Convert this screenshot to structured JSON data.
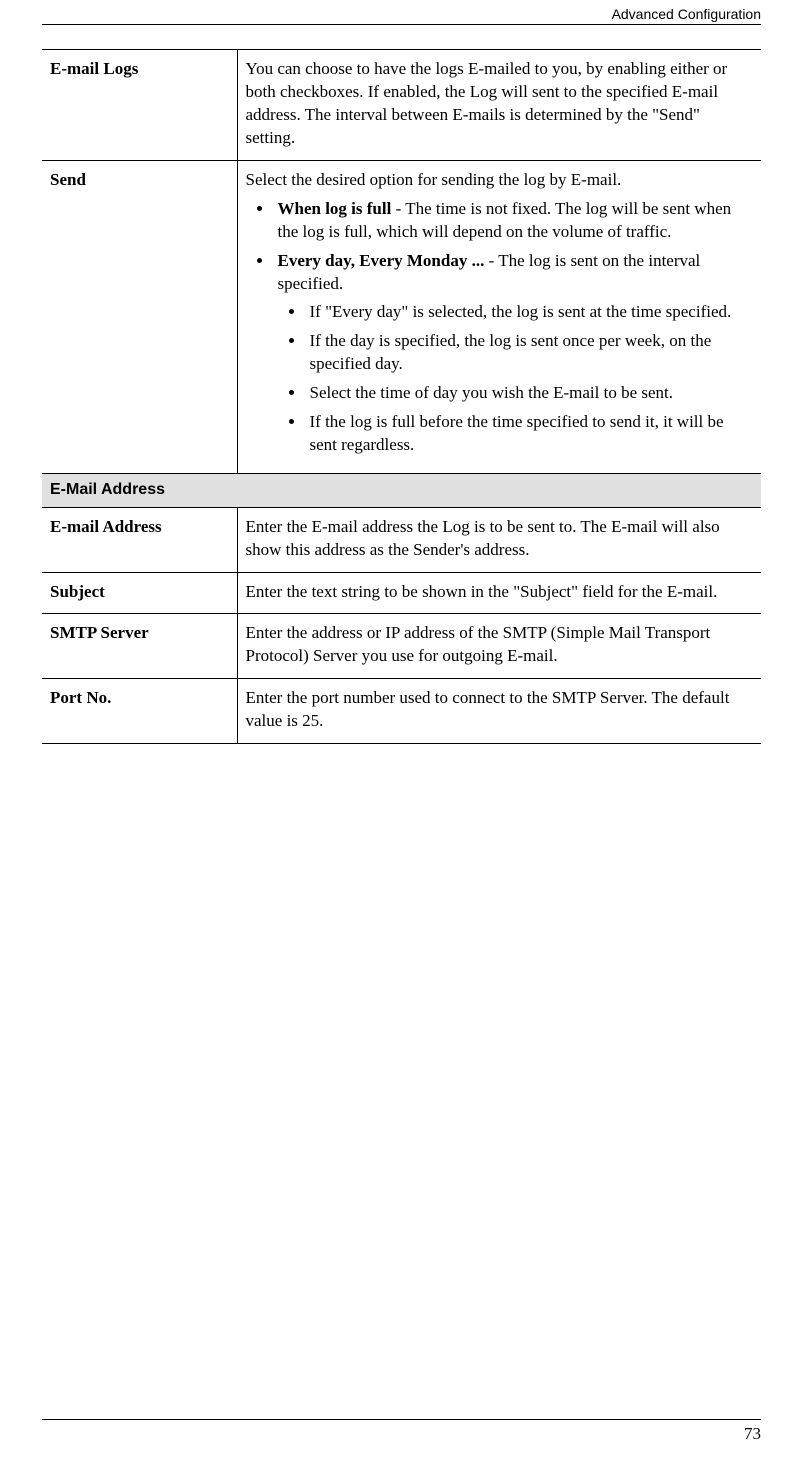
{
  "header": {
    "title": "Advanced Configuration"
  },
  "footer": {
    "page_number": "73"
  },
  "rows": {
    "email_logs": {
      "label": "E-mail Logs",
      "desc": "You can choose to have the logs E-mailed to you, by enabling either or both checkboxes. If enabled, the Log will sent to the specified E-mail address. The interval between E-mails is deter­mined by the \"Send\" setting."
    },
    "send": {
      "label": "Send",
      "intro": "Select the desired option for sending the log by E-mail.",
      "b1_bold": "When log is full",
      "b1_rest": " - The time is not fixed. The log will be sent when the log is full, which will depend on the volume of traf­fic.",
      "b2_bold": "Every day, Every Monday ...",
      "b2_rest": "  - The log is sent on the interval specified.",
      "sub1": "If \"Every day\" is selected, the log is sent at the time specified.",
      "sub2": "If the day is specified, the log is sent once per week, on the specified day.",
      "sub3": "Select the time of day you wish the E-mail to be sent.",
      "sub4": "If the log is full before the time specified to send it, it will be sent regardless."
    },
    "section_email_address": {
      "title": "E-Mail Address"
    },
    "email_address": {
      "label": "E-mail Address",
      "desc": "Enter the E-mail address the Log is to be sent to. The E-mail will also show this address as the Sender's address."
    },
    "subject": {
      "label": "Subject",
      "desc": "Enter the text string to be shown in the \"Subject\" field for the E-mail."
    },
    "smtp": {
      "label": "SMTP Server",
      "desc": "Enter the address or IP address of the SMTP (Simple Mail Trans­port Protocol) Server you use for outgoing E-mail."
    },
    "port": {
      "label": "Port No.",
      "desc": "Enter the port number used to connect to the SMTP Server. The default value is 25."
    }
  }
}
